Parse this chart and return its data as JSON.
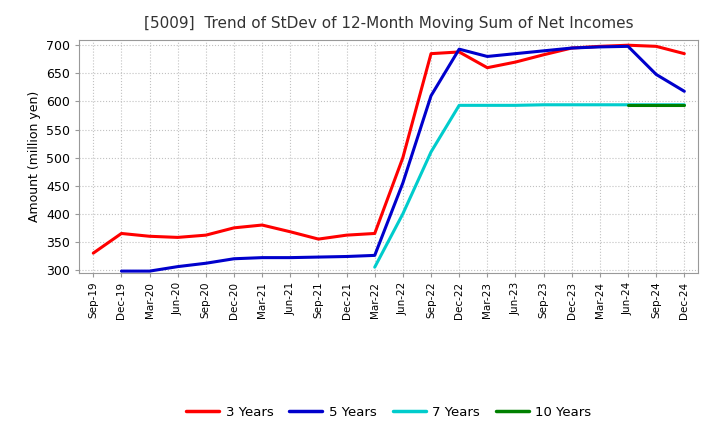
{
  "title": "[5009]  Trend of StDev of 12-Month Moving Sum of Net Incomes",
  "ylabel": "Amount (million yen)",
  "background_color": "#ffffff",
  "plot_bg_color": "#ffffff",
  "grid_color": "#bbbbbb",
  "ylim": [
    295,
    710
  ],
  "yticks": [
    300,
    350,
    400,
    450,
    500,
    550,
    600,
    650,
    700
  ],
  "series": {
    "3 Years": {
      "color": "#ff0000",
      "data_x": [
        "Sep-19",
        "Dec-19",
        "Mar-20",
        "Jun-20",
        "Sep-20",
        "Dec-20",
        "Mar-21",
        "Jun-21",
        "Sep-21",
        "Dec-21",
        "Mar-22",
        "Jun-22",
        "Sep-22",
        "Dec-22",
        "Mar-23",
        "Jun-23",
        "Sep-23",
        "Dec-23",
        "Mar-24",
        "Jun-24",
        "Sep-24",
        "Dec-24"
      ],
      "data_y": [
        330,
        365,
        360,
        358,
        362,
        375,
        380,
        368,
        355,
        362,
        365,
        500,
        685,
        688,
        660,
        670,
        683,
        695,
        698,
        700,
        698,
        685
      ]
    },
    "5 Years": {
      "color": "#0000cc",
      "data_x": [
        "Dec-19",
        "Mar-20",
        "Jun-20",
        "Sep-20",
        "Dec-20",
        "Mar-21",
        "Jun-21",
        "Sep-21",
        "Dec-21",
        "Mar-22",
        "Jun-22",
        "Sep-22",
        "Dec-22",
        "Mar-23",
        "Jun-23",
        "Sep-23",
        "Dec-23",
        "Mar-24",
        "Jun-24",
        "Sep-24",
        "Dec-24"
      ],
      "data_y": [
        298,
        298,
        306,
        312,
        320,
        322,
        322,
        323,
        324,
        326,
        455,
        610,
        693,
        680,
        685,
        690,
        695,
        697,
        698,
        648,
        618
      ]
    },
    "7 Years": {
      "color": "#00cccc",
      "data_x": [
        "Mar-22",
        "Jun-22",
        "Sep-22",
        "Dec-22",
        "Mar-23",
        "Jun-23",
        "Sep-23",
        "Dec-23",
        "Mar-24",
        "Jun-24",
        "Sep-24",
        "Dec-24"
      ],
      "data_y": [
        305,
        400,
        510,
        593,
        593,
        593,
        594,
        594,
        594,
        594,
        594,
        594
      ]
    },
    "10 Years": {
      "color": "#008000",
      "data_x": [
        "Jun-24",
        "Sep-24",
        "Dec-24"
      ],
      "data_y": [
        594,
        594,
        594
      ]
    }
  },
  "xtick_labels": [
    "Sep-19",
    "Dec-19",
    "Mar-20",
    "Jun-20",
    "Sep-20",
    "Dec-20",
    "Mar-21",
    "Jun-21",
    "Sep-21",
    "Dec-21",
    "Mar-22",
    "Jun-22",
    "Sep-22",
    "Dec-22",
    "Mar-23",
    "Jun-23",
    "Sep-23",
    "Dec-23",
    "Mar-24",
    "Jun-24",
    "Sep-24",
    "Dec-24"
  ],
  "legend_labels": [
    "3 Years",
    "5 Years",
    "7 Years",
    "10 Years"
  ],
  "legend_colors": [
    "#ff0000",
    "#0000cc",
    "#00cccc",
    "#008000"
  ]
}
